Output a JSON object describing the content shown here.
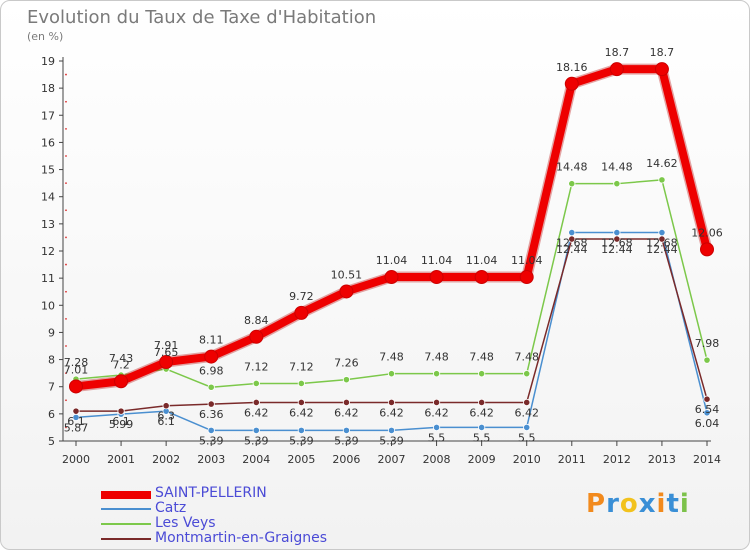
{
  "header": {
    "title": "Evolution du Taux de Taxe d'Habitation",
    "unit": "(en %)"
  },
  "brand": {
    "text": "Proxiti",
    "colors": [
      "#f28a1d",
      "#3a8fd6",
      "#f2c21d",
      "#3a8fd6",
      "#f28a1d",
      "#3a8fd6",
      "#7cc24a"
    ]
  },
  "chart_data": {
    "type": "line",
    "title": "Evolution du Taux de Taxe d'Habitation",
    "ylabel": "(en %)",
    "xlabel": "",
    "x": [
      "2000",
      "2001",
      "2002",
      "2003",
      "2004",
      "2005",
      "2006",
      "2007",
      "2008",
      "2009",
      "2010",
      "2011",
      "2012",
      "2013",
      "2014"
    ],
    "ylim": [
      5,
      19
    ],
    "yticks": [
      5,
      6,
      7,
      8,
      9,
      10,
      11,
      12,
      13,
      14,
      15,
      16,
      17,
      18,
      19
    ],
    "grid": false,
    "legend_position": "bottom-left",
    "series": [
      {
        "name": "SAINT-PELLERIN",
        "color": "#ee0000",
        "values": [
          7.01,
          7.2,
          7.91,
          8.11,
          8.84,
          9.72,
          10.51,
          11.04,
          11.04,
          11.04,
          11.04,
          18.16,
          18.7,
          18.7,
          12.06
        ],
        "labels": [
          "7.01",
          "7.2",
          "7.91",
          "8.11",
          "8.84",
          "9.72",
          "10.51",
          "11.04",
          "11.04",
          "11.04",
          "11.04",
          "18.16",
          "18.7",
          "18.7",
          "12.06"
        ]
      },
      {
        "name": "Catz",
        "color": "#4a8fd0",
        "values": [
          5.87,
          5.99,
          6.1,
          5.39,
          5.39,
          5.39,
          5.39,
          5.39,
          5.5,
          5.5,
          5.5,
          12.68,
          12.68,
          12.68,
          6.04
        ],
        "labels": [
          "5.87",
          "5.99",
          "6.1",
          "5.39",
          "5.39",
          "5.39",
          "5.39",
          "5.39",
          "5.5",
          "5.5",
          "5.5",
          "12.68",
          "12.68",
          "12.68",
          "6.04"
        ]
      },
      {
        "name": "Les Veys",
        "color": "#7cc84a",
        "values": [
          7.28,
          7.43,
          7.65,
          6.98,
          7.12,
          7.12,
          7.26,
          7.48,
          7.48,
          7.48,
          7.48,
          14.48,
          14.48,
          14.62,
          7.98
        ],
        "labels": [
          "7.28",
          "7.43",
          "7.65",
          "6.98",
          "7.12",
          "7.12",
          "7.26",
          "7.48",
          "7.48",
          "7.48",
          "7.48",
          "14.48",
          "14.48",
          "14.62",
          "7.98"
        ]
      },
      {
        "name": "Montmartin-en-Graignes",
        "color": "#7a2a2a",
        "values": [
          6.1,
          6.1,
          6.3,
          6.36,
          6.42,
          6.42,
          6.42,
          6.42,
          6.42,
          6.42,
          6.42,
          12.44,
          12.44,
          12.44,
          6.54
        ],
        "labels": [
          "6.1",
          "6.1",
          "6.3",
          "6.36",
          "6.42",
          "6.42",
          "6.42",
          "6.42",
          "6.42",
          "6.42",
          "6.42",
          "12.44",
          "12.44",
          "12.44",
          "6.54"
        ]
      }
    ]
  }
}
